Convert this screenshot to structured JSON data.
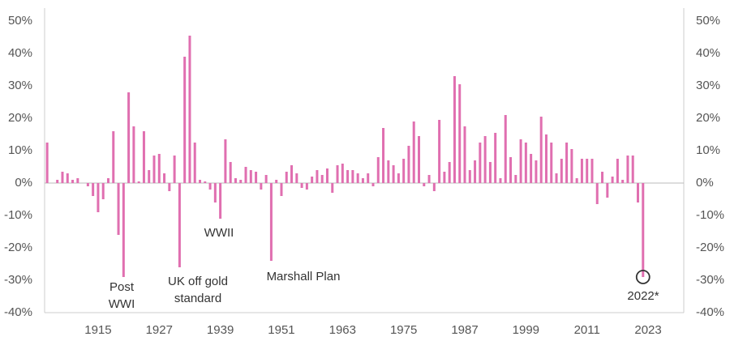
{
  "chart_data": {
    "type": "bar",
    "color": "#e06fb0",
    "x": [
      1905,
      1906,
      1907,
      1908,
      1909,
      1910,
      1911,
      1912,
      1913,
      1914,
      1915,
      1916,
      1917,
      1918,
      1919,
      1920,
      1921,
      1922,
      1923,
      1924,
      1925,
      1926,
      1927,
      1928,
      1929,
      1930,
      1931,
      1932,
      1933,
      1934,
      1935,
      1936,
      1937,
      1938,
      1939,
      1940,
      1941,
      1942,
      1943,
      1944,
      1945,
      1946,
      1947,
      1948,
      1949,
      1950,
      1951,
      1952,
      1953,
      1954,
      1955,
      1956,
      1957,
      1958,
      1959,
      1960,
      1961,
      1962,
      1963,
      1964,
      1965,
      1966,
      1967,
      1968,
      1969,
      1970,
      1971,
      1972,
      1973,
      1974,
      1975,
      1976,
      1977,
      1978,
      1979,
      1980,
      1981,
      1982,
      1983,
      1984,
      1985,
      1986,
      1987,
      1988,
      1989,
      1990,
      1991,
      1992,
      1993,
      1994,
      1995,
      1996,
      1997,
      1998,
      1999,
      2000,
      2001,
      2002,
      2003,
      2004,
      2005,
      2006,
      2007,
      2008,
      2009,
      2010,
      2011,
      2012,
      2013,
      2014,
      2015,
      2016,
      2017,
      2018,
      2019,
      2020,
      2021,
      2022
    ],
    "values": [
      12.5,
      0,
      1,
      3.5,
      3,
      1,
      1.5,
      0,
      -1,
      -4,
      -9,
      -5,
      1.5,
      16,
      -16,
      -29,
      28,
      17.5,
      0.5,
      16,
      4,
      8.5,
      9,
      3,
      -2.5,
      8.5,
      -26,
      39,
      45.5,
      12.5,
      1,
      0.5,
      -2,
      -6,
      -11,
      13.5,
      6.5,
      1.5,
      1,
      5,
      4,
      3.5,
      -2,
      2.5,
      -24,
      1,
      -4,
      3.5,
      5.5,
      3,
      -1.5,
      -2,
      2,
      4,
      2.5,
      4.5,
      -3,
      5.5,
      6,
      4,
      4,
      3,
      1.5,
      3,
      -1,
      8,
      17,
      7,
      5.5,
      3,
      7.5,
      11.5,
      19,
      14.5,
      -1,
      2.5,
      -2.5,
      19.5,
      3.5,
      6.5,
      33,
      30.5,
      17.5,
      4,
      7,
      12.5,
      14.5,
      6.5,
      15.5,
      1.5,
      21,
      8,
      2.5,
      13.5,
      12.5,
      9,
      7,
      20.5,
      15,
      12.5,
      3,
      7.5,
      12.5,
      10.5,
      1.5,
      7.5,
      7.5,
      7.5,
      -6.5,
      3.5,
      -4.5,
      2,
      7.5,
      1,
      8.5,
      8.5,
      -6,
      -29
    ],
    "xlim": [
      1904.5,
      2030
    ],
    "xticks": [
      1915,
      1927,
      1939,
      1951,
      1963,
      1975,
      1987,
      1999,
      2011,
      2023
    ],
    "ylim": [
      -40,
      54
    ],
    "yticks": [
      {
        "value": -40,
        "label": "-40%"
      },
      {
        "value": -30,
        "label": "-30%"
      },
      {
        "value": -20,
        "label": "-20%"
      },
      {
        "value": -10,
        "label": "-10%"
      },
      {
        "value": 0,
        "label": "0%"
      },
      {
        "value": 10,
        "label": "10%"
      },
      {
        "value": 20,
        "label": "20%"
      },
      {
        "value": 30,
        "label": "30%"
      },
      {
        "value": 40,
        "label": "40%"
      },
      {
        "value": 50,
        "label": "50%"
      }
    ],
    "annotations": [
      [
        "Post",
        "WWI"
      ],
      [
        "UK off gold",
        "standard"
      ],
      [
        "WWII"
      ],
      [
        "Marshall Plan"
      ],
      [
        "2022*"
      ]
    ]
  }
}
